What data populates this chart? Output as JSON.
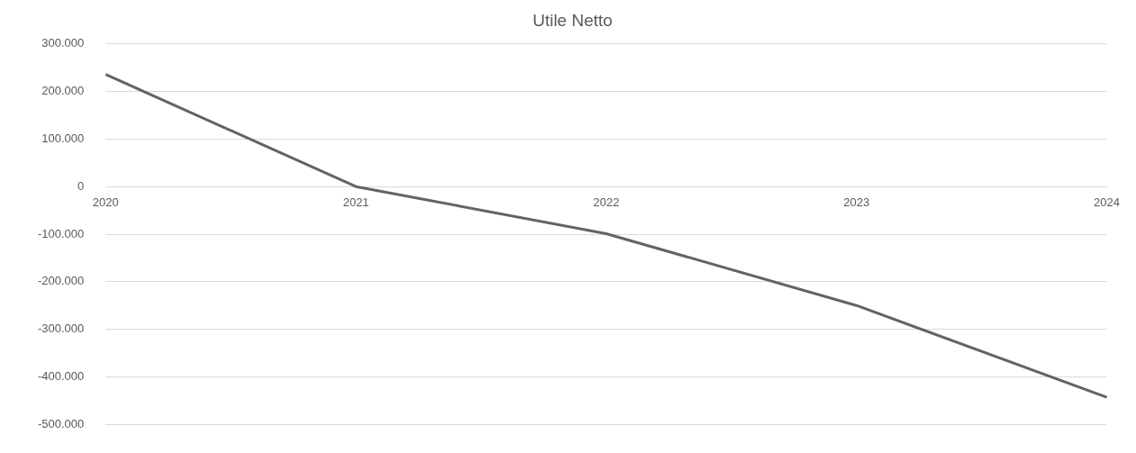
{
  "chart_data": {
    "type": "line",
    "title": "Utile Netto",
    "categories": [
      "2020",
      "2021",
      "2022",
      "2023",
      "2024"
    ],
    "series": [
      {
        "color": "#636363",
        "values": [
          236000,
          0,
          -99000,
          -250000,
          -443000
        ]
      }
    ],
    "ylim": [
      -500000,
      300000
    ],
    "yticks": [
      {
        "value": -500000,
        "label": "-500.000"
      },
      {
        "value": -400000,
        "label": "-400.000"
      },
      {
        "value": -300000,
        "label": "-300.000"
      },
      {
        "value": -200000,
        "label": "-200.000"
      },
      {
        "value": -100000,
        "label": "-100.000"
      },
      {
        "value": 0,
        "label": "0"
      },
      {
        "value": 100000,
        "label": "100.000"
      },
      {
        "value": 200000,
        "label": "200.000"
      },
      {
        "value": 300000,
        "label": "300.000"
      }
    ],
    "grid": "y",
    "legend": false,
    "marker": "none",
    "line_style": "solid"
  }
}
